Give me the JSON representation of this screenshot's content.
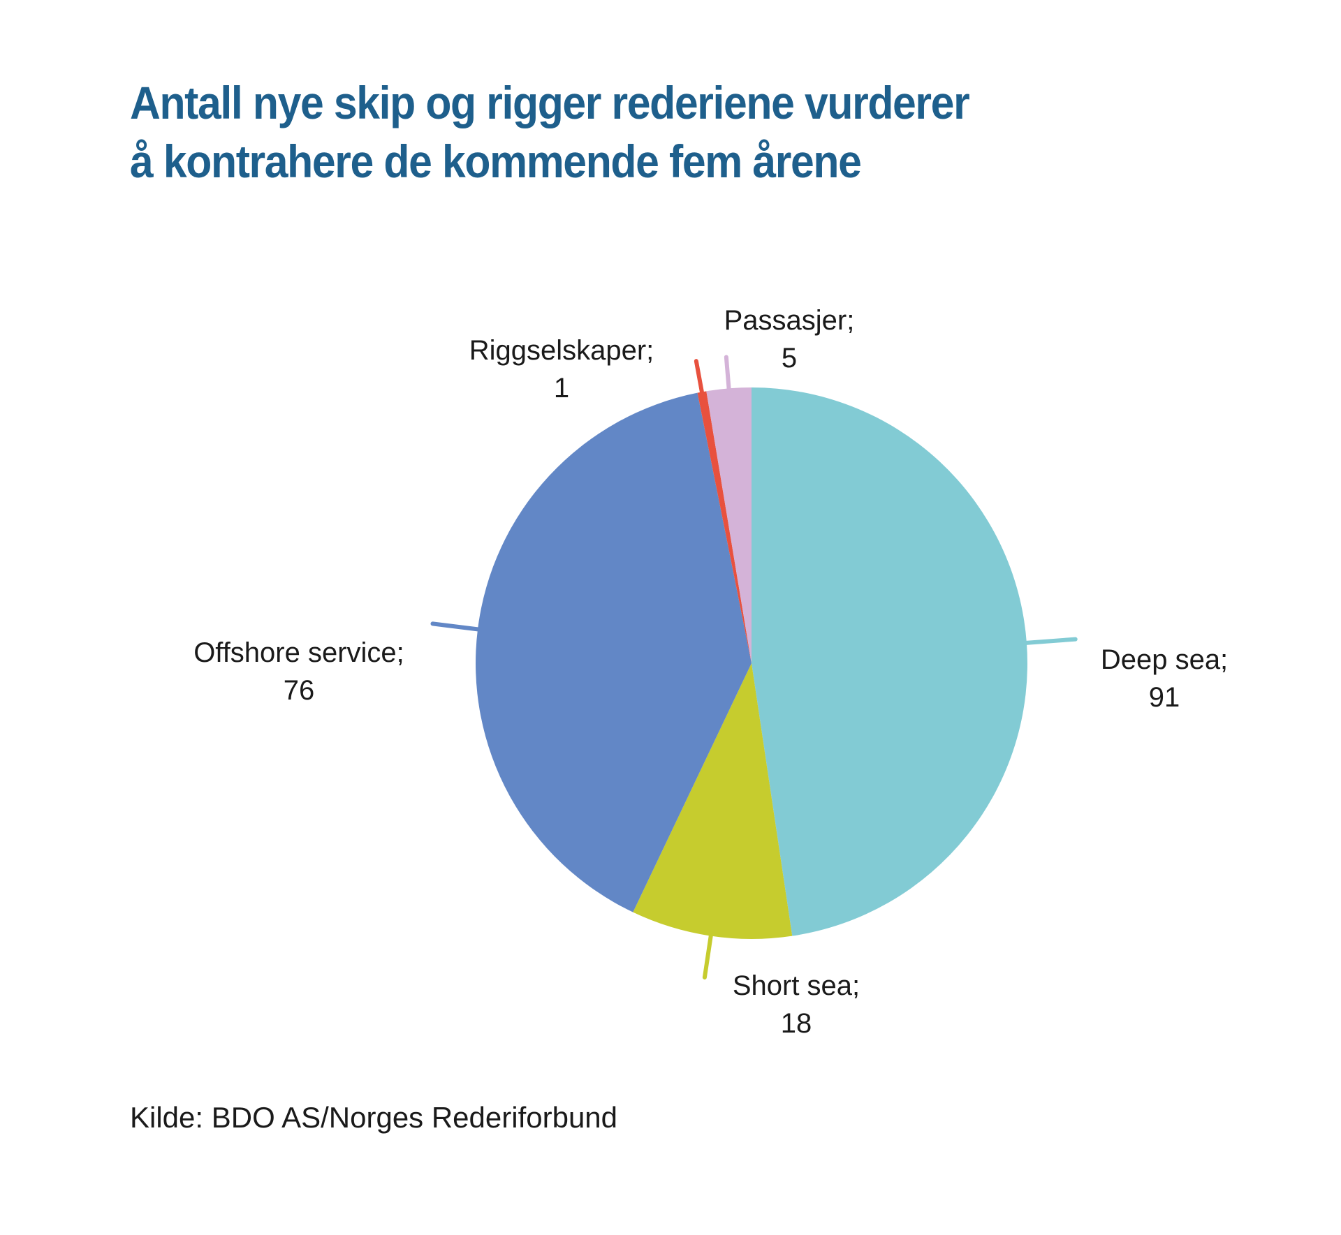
{
  "title_line1": "Antall nye skip og rigger rederiene vurderer",
  "title_line2": "å kontrahere de kommende fem årene",
  "source": "Kilde: BDO AS/Norges Rederiforbund",
  "chart_data": {
    "type": "pie",
    "start": "12 o'clock, clockwise",
    "slices": [
      {
        "name": "Deep sea",
        "value": 91,
        "label_line1": "Deep sea;",
        "label_line2": "91",
        "color": "#82cbd4"
      },
      {
        "name": "Short sea",
        "value": 18,
        "label_line1": "Short sea;",
        "label_line2": "18",
        "color": "#c6cc2e"
      },
      {
        "name": "Offshore service",
        "value": 76,
        "label_line1": "Offshore service;",
        "label_line2": "76",
        "color": "#6287c6"
      },
      {
        "name": "Riggselskaper",
        "value": 1,
        "label_line1": "Riggselskaper;",
        "label_line2": "1",
        "color": "#e8513e"
      },
      {
        "name": "Passasjer",
        "value": 5,
        "label_line1": "Passasjer;",
        "label_line2": "5",
        "color": "#d4b3d8"
      }
    ]
  }
}
